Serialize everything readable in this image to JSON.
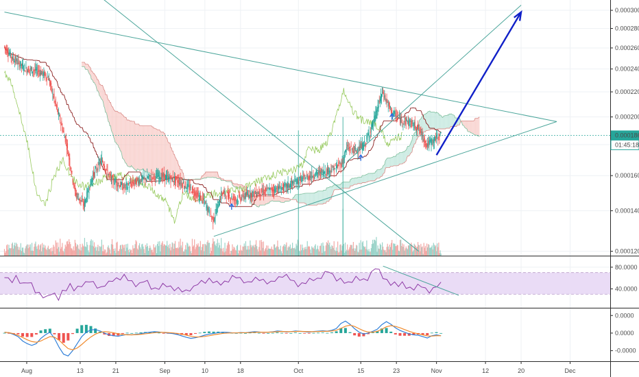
{
  "chart_data": [
    {
      "type": "candlestick",
      "panel": "price",
      "y_scale": "log",
      "ylim": [
        0.000118,
        0.000312
      ],
      "y_ticks": [
        "0.0001200",
        "0.0001400",
        "0.0001600",
        "0.0001800",
        "0.0002000",
        "0.0002200",
        "0.0002400",
        "0.0002600",
        "0.0002800",
        "0.0003000"
      ],
      "y_tick_values": [
        0.00012,
        0.00014,
        0.00016,
        0.00018,
        0.0002,
        0.00022,
        0.00024,
        0.00026,
        0.00028,
        0.0003
      ],
      "last_price": {
        "label": "0.0001865",
        "value": 0.0001865,
        "countdown": "01:45:18",
        "color": "#26a69a"
      },
      "trendlines": [
        {
          "name": "triangle-upper",
          "points": [
            [
              "2018-07-27",
              0.000298
            ],
            [
              "2018-11-28",
              0.0001965
            ]
          ]
        },
        {
          "name": "triangle-lower",
          "points": [
            [
              "2018-09-12",
              0.000127
            ],
            [
              "2018-11-28",
              0.0001965
            ]
          ]
        },
        {
          "name": "diagonal-descending",
          "points": [
            [
              "2018-08-17",
              0.000318
            ],
            [
              "2018-10-28",
              0.00012
            ]
          ]
        },
        {
          "name": "channel-line",
          "points": [
            [
              "2018-10-12",
              0.000169
            ],
            [
              "2018-11-20",
              0.000306
            ]
          ]
        }
      ],
      "projection_arrow": {
        "from": [
          "2018-11-01",
          0.000173
        ],
        "to": [
          "2018-11-20",
          0.000298
        ],
        "color": "#1020c8"
      },
      "markers": [
        {
          "date": "2018-09-16",
          "value": 0.000142
        },
        {
          "date": "2018-10-15",
          "value": 0.000171
        },
        {
          "date": "2018-10-22",
          "value": 0.0002
        }
      ],
      "volume_spikes": [
        [
          "2018-10-01",
          0.00019
        ],
        [
          "2018-10-11",
          0.0002
        ],
        [
          "2018-10-11",
          0.000141
        ]
      ]
    },
    {
      "type": "line",
      "panel": "rsi",
      "ylim": [
        5,
        100
      ],
      "y_ticks": [
        "80.0000",
        "40.0000"
      ],
      "y_tick_values": [
        80,
        40
      ],
      "band": [
        30,
        70
      ],
      "series": [
        {
          "values": [
            62,
            58,
            55,
            60,
            52,
            48,
            55,
            50,
            35,
            30,
            28,
            25,
            32,
            28,
            20,
            35,
            40,
            45,
            38,
            42,
            48,
            52,
            55,
            50,
            46,
            42,
            48,
            50,
            55,
            58,
            60,
            62,
            57,
            52,
            48,
            50,
            55,
            52,
            44,
            40,
            42,
            46,
            45,
            43,
            40,
            38,
            36,
            35,
            40,
            44,
            50,
            52,
            55,
            58,
            54,
            50,
            48,
            52,
            56,
            60,
            62,
            58,
            55,
            52,
            55,
            58,
            60,
            56,
            52,
            50,
            55,
            60,
            65,
            62,
            58,
            52,
            48,
            50,
            52,
            56,
            60,
            58,
            62,
            68,
            72,
            65,
            58,
            55,
            52,
            50,
            56,
            62,
            58,
            55,
            60,
            70,
            80,
            72,
            60,
            55,
            50,
            48,
            46,
            50,
            45,
            42,
            40,
            45,
            48,
            40,
            35,
            38,
            45,
            50
          ]
        }
      ],
      "trendline": [
        [
          "2018-10-20",
          82
        ],
        [
          "2018-11-06",
          28
        ]
      ]
    },
    {
      "type": "macd",
      "panel": "macd",
      "ylim": [
        -1.6e-05,
        1.4e-05
      ],
      "y_ticks": [
        "0.0000",
        "0.0000",
        "-0.0000"
      ],
      "y_tick_values": [
        1e-05,
        0,
        -1e-05
      ],
      "macd": [
        0.5,
        0.2,
        -0.8,
        -2.0,
        -4.5,
        -6.0,
        -7.0,
        -6.0,
        -3.0,
        -1.0,
        0.5,
        -3.0,
        -8.0,
        -12.0,
        -13.0,
        -10.0,
        -6.0,
        -2.0,
        0.5,
        1.8,
        2.0,
        1.2,
        0.0,
        -1.0,
        -1.5,
        -1.8,
        -1.2,
        -0.8,
        -1.0,
        -0.7,
        -0.3,
        0.2,
        0.5,
        0.8,
        0.6,
        0.3,
        0.0,
        -0.3,
        -0.8,
        -1.6,
        -2.4,
        -3.0,
        -2.6,
        -2.0,
        -1.2,
        -0.6,
        -0.2,
        0.2,
        0.5,
        0.4,
        0.2,
        0.1,
        0.3,
        0.2,
        0.5,
        0.8,
        0.6,
        0.4,
        0.5,
        0.7,
        1.2,
        1.0,
        0.6,
        0.8,
        1.2,
        1.0,
        0.8,
        0.5,
        0.9,
        1.1,
        1.3,
        1.1,
        1.6,
        2.6,
        5.5,
        6.8,
        5.0,
        2.5,
        0.5,
        -0.5,
        0.0,
        1.0,
        2.2,
        4.8,
        6.5,
        5.0,
        3.0,
        1.5,
        0.5,
        -0.5,
        -1.0,
        -1.2,
        -2.0,
        -2.8,
        -1.5,
        -1.0,
        -1.5
      ],
      "signal": [
        0.4,
        0.3,
        -0.4,
        -1.3,
        -2.5,
        -3.8,
        -4.8,
        -5.2,
        -4.5,
        -3.2,
        -2.0,
        -2.3,
        -4.0,
        -6.5,
        -8.8,
        -9.5,
        -8.5,
        -6.5,
        -4.2,
        -2.2,
        -0.6,
        0.4,
        0.8,
        0.6,
        0.2,
        -0.4,
        -0.8,
        -1.0,
        -1.0,
        -0.9,
        -0.7,
        -0.4,
        -0.1,
        0.2,
        0.4,
        0.4,
        0.3,
        0.1,
        -0.2,
        -0.6,
        -1.2,
        -1.8,
        -2.2,
        -2.2,
        -1.9,
        -1.5,
        -1.0,
        -0.6,
        -0.2,
        0.0,
        0.1,
        0.1,
        0.2,
        0.2,
        0.3,
        0.4,
        0.5,
        0.5,
        0.5,
        0.6,
        0.8,
        0.9,
        0.8,
        0.8,
        0.9,
        1.0,
        0.9,
        0.8,
        0.8,
        0.9,
        1.0,
        1.0,
        1.2,
        1.6,
        2.7,
        3.9,
        4.5,
        3.8,
        2.5,
        1.3,
        0.6,
        0.5,
        1.0,
        2.2,
        3.6,
        4.2,
        3.8,
        3.0,
        2.0,
        1.0,
        0.2,
        -0.4,
        -1.0,
        -1.6,
        -1.7,
        -1.5,
        -1.5
      ]
    }
  ],
  "x_axis": {
    "labels": [
      {
        "text": "Aug",
        "date": "2018-08-01"
      },
      {
        "text": "13",
        "date": "2018-08-13"
      },
      {
        "text": "21",
        "date": "2018-08-21"
      },
      {
        "text": "Sep",
        "date": "2018-09-01"
      },
      {
        "text": "10",
        "date": "2018-09-10"
      },
      {
        "text": "18",
        "date": "2018-09-18"
      },
      {
        "text": "Oct",
        "date": "2018-10-01"
      },
      {
        "text": "15",
        "date": "2018-10-15"
      },
      {
        "text": "23",
        "date": "2018-10-23"
      },
      {
        "text": "Nov",
        "date": "2018-11-01"
      },
      {
        "text": "12",
        "date": "2018-11-12"
      },
      {
        "text": "20",
        "date": "2018-11-20"
      },
      {
        "text": "Dec",
        "date": "2018-12-01"
      }
    ],
    "range": [
      "2018-07-26",
      "2018-12-10"
    ],
    "data_end": "2018-11-02"
  },
  "colors": {
    "up": "#26a69a",
    "down": "#ef5350",
    "cloud_bear": "#f7c6c2",
    "cloud_bull": "#b9e4d8",
    "lagging": "#8bc34a",
    "trend": "#4aa59a",
    "rsi": "#8e3aa6",
    "rsi_band": "#eadcf6",
    "macd": "#2f7fd8",
    "signal": "#f08a2c",
    "arrow": "#1020c8"
  }
}
